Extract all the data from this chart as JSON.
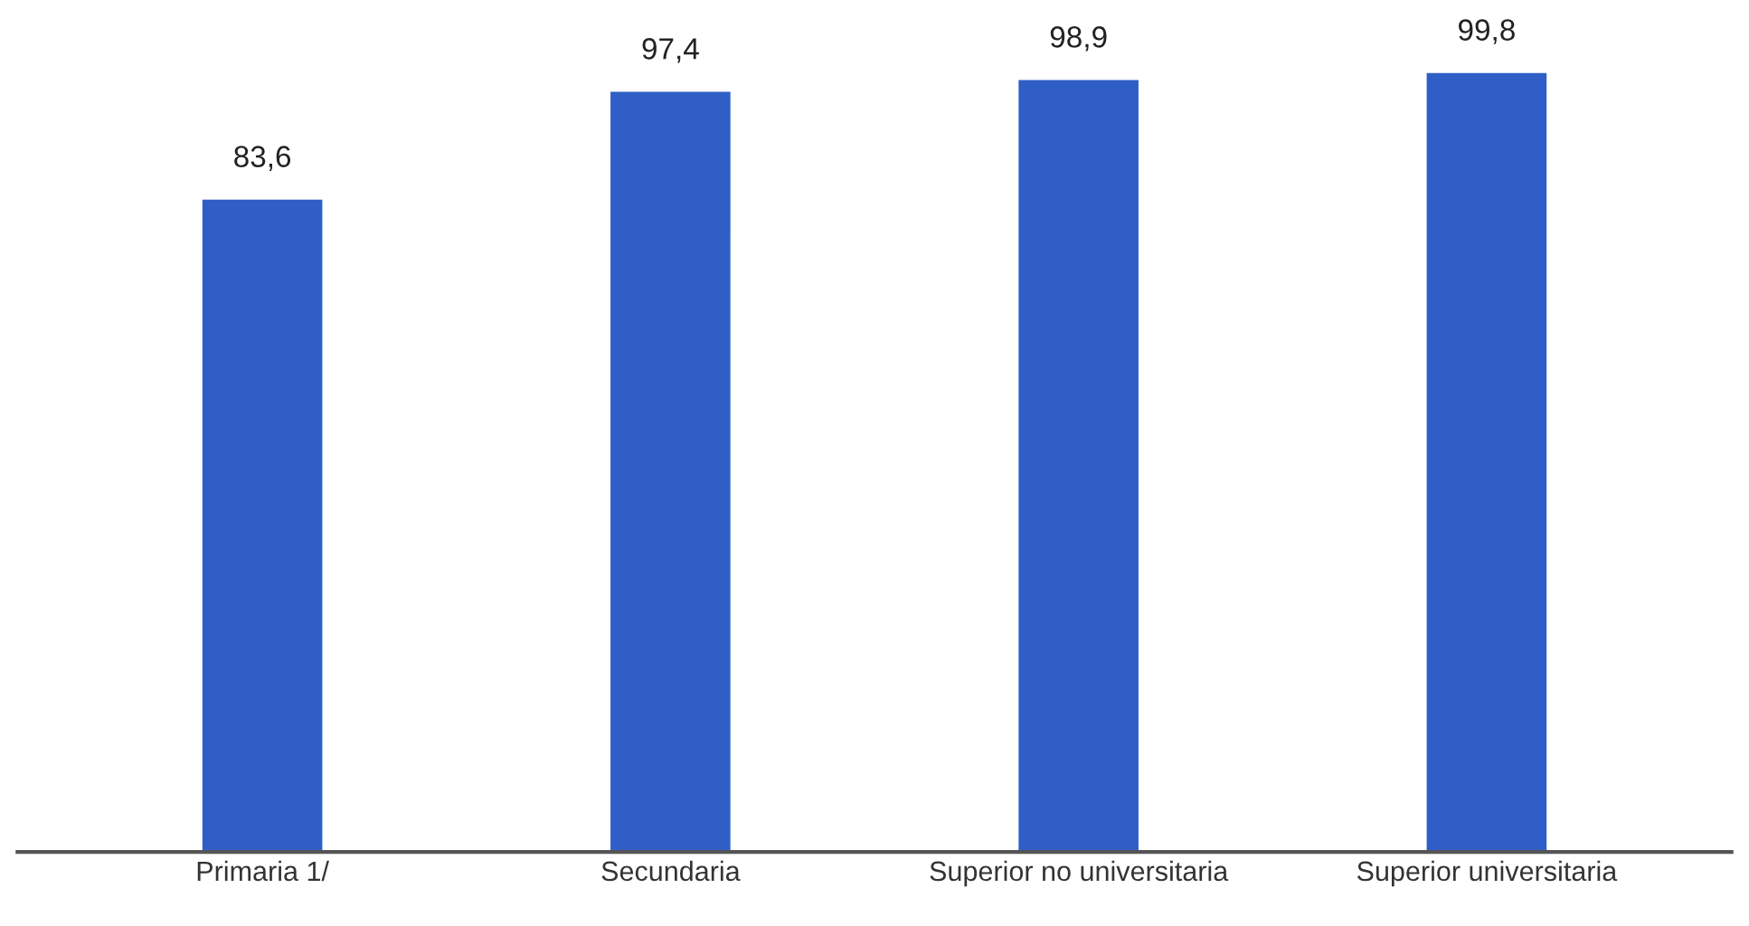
{
  "chart_data": {
    "type": "bar",
    "categories": [
      "Primaria 1/",
      "Secundaria",
      "Superior no universitaria",
      "Superior universitaria"
    ],
    "values": [
      83.6,
      97.4,
      98.9,
      99.8
    ],
    "value_labels": [
      "83,6",
      "97,4",
      "98,9",
      "99,8"
    ],
    "color": "#2f5fc6",
    "tick_labels": "x",
    "grid": false,
    "legend": false
  }
}
